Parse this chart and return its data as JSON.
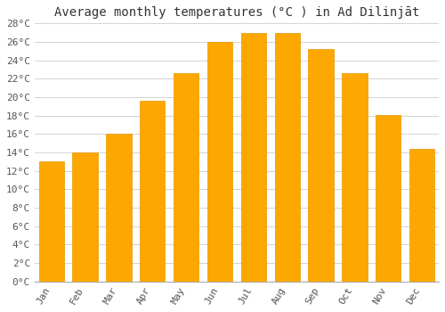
{
  "title": "Average monthly temperatures (°C ) in Ad Dilinjāt",
  "months": [
    "Jan",
    "Feb",
    "Mar",
    "Apr",
    "May",
    "Jun",
    "Jul",
    "Aug",
    "Sep",
    "Oct",
    "Nov",
    "Dec"
  ],
  "values": [
    13.0,
    14.0,
    16.0,
    19.6,
    22.6,
    26.0,
    27.0,
    27.0,
    25.2,
    22.6,
    18.1,
    14.4
  ],
  "bar_color": "#FCA800",
  "bar_edge_color": "#E89600",
  "bar_light_color": "#FFD060",
  "background_color": "#ffffff",
  "grid_color": "#cccccc",
  "text_color": "#555555",
  "ylim": [
    0,
    28
  ],
  "ytick_values": [
    0,
    2,
    4,
    6,
    8,
    10,
    12,
    14,
    16,
    18,
    20,
    22,
    24,
    26,
    28
  ],
  "title_fontsize": 10,
  "tick_fontsize": 8
}
